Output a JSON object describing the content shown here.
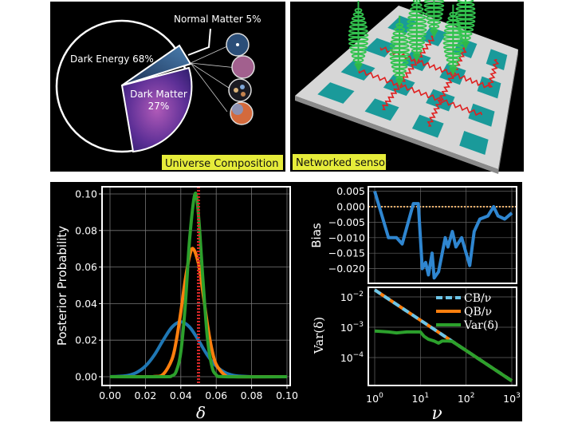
{
  "panels": {
    "universe": {
      "caption": "Universe Composition",
      "labels": {
        "dark_energy": "Dark Energy 68%",
        "normal_matter": "Normal Matter 5%",
        "dark_matter_line1": "Dark Matter",
        "dark_matter_line2": "27%"
      },
      "slices": [
        {
          "name": "Dark Energy",
          "percent": 68,
          "color": "#000000"
        },
        {
          "name": "Dark Matter",
          "percent": 27,
          "color": "#6a3a9a"
        },
        {
          "name": "Normal Matter",
          "percent": 5,
          "color": "#2d5a8a"
        }
      ]
    },
    "sensor": {
      "caption": "Networked sensor"
    },
    "caption_color": "#e6ec3a"
  },
  "chart_data": [
    {
      "type": "line",
      "xlabel": "δ",
      "ylabel": "Posterior Probability",
      "xlim": [
        0,
        0.1
      ],
      "ylim": [
        0,
        0.1
      ],
      "xticks": [
        "0.00",
        "0.02",
        "0.04",
        "0.06",
        "0.08",
        "0.10"
      ],
      "yticks": [
        "0.00",
        "0.02",
        "0.04",
        "0.06",
        "0.08",
        "0.10"
      ],
      "grid": true,
      "reference_line": {
        "x": 0.05,
        "style": "dotted",
        "color": "#d62728"
      },
      "series": [
        {
          "color": "#1f77b4",
          "x": [
            0,
            0.005,
            0.01,
            0.015,
            0.02,
            0.025,
            0.03,
            0.035,
            0.04,
            0.045,
            0.05,
            0.055,
            0.06,
            0.065,
            0.07,
            0.075,
            0.08,
            0.085,
            0.09,
            0.095,
            0.1
          ],
          "y": [
            0,
            0.0002,
            0.0007,
            0.0023,
            0.0058,
            0.0118,
            0.0199,
            0.0271,
            0.03,
            0.0271,
            0.0199,
            0.0118,
            0.0058,
            0.0023,
            0.0007,
            0.0002,
            0,
            0,
            0,
            0,
            0
          ]
        },
        {
          "color": "#ff7f0e",
          "x": [
            0,
            0.02,
            0.025,
            0.03,
            0.035,
            0.0375,
            0.04,
            0.0425,
            0.045,
            0.047,
            0.05,
            0.0525,
            0.055,
            0.0575,
            0.06,
            0.065,
            0.07,
            0.1
          ],
          "y": [
            0,
            0,
            0.0001,
            0.0013,
            0.0095,
            0.02,
            0.0354,
            0.0529,
            0.0662,
            0.07,
            0.0618,
            0.046,
            0.0288,
            0.0152,
            0.0067,
            0.0008,
            0,
            0
          ]
        },
        {
          "color": "#2ca02c",
          "x": [
            0,
            0.03,
            0.035,
            0.0375,
            0.04,
            0.0425,
            0.045,
            0.048,
            0.05,
            0.0525,
            0.055,
            0.0575,
            0.06,
            0.065,
            0.1
          ],
          "y": [
            0,
            0,
            0.0005,
            0.0032,
            0.0135,
            0.0389,
            0.0755,
            0.1,
            0.0882,
            0.0531,
            0.0216,
            0.006,
            0.0011,
            0,
            0
          ]
        }
      ]
    },
    {
      "type": "line",
      "ylabel": "Bias",
      "xscale": "log",
      "xlim": [
        1,
        1000
      ],
      "ylim": [
        -0.0235,
        0.006
      ],
      "yticks": [
        "0.005",
        "0.000",
        "−0.005",
        "−0.010",
        "−0.015",
        "−0.020"
      ],
      "grid": true,
      "reference_line": {
        "y": 0,
        "style": "dotted",
        "color": "#f5b26b"
      },
      "series": [
        {
          "color": "#2f86d0",
          "x": [
            1,
            2,
            3,
            4,
            7,
            9,
            11,
            13,
            15,
            18,
            20,
            25,
            30,
            35,
            40,
            50,
            60,
            80,
            100,
            120,
            150,
            200,
            300,
            400,
            500,
            700,
            1000
          ],
          "y": [
            0.005,
            -0.01,
            -0.01,
            -0.012,
            0.001,
            0.001,
            -0.02,
            -0.018,
            -0.022,
            -0.015,
            -0.023,
            -0.021,
            -0.015,
            -0.01,
            -0.013,
            -0.008,
            -0.013,
            -0.01,
            -0.015,
            -0.019,
            -0.008,
            -0.004,
            -0.003,
            0.0,
            -0.003,
            -0.004,
            -0.002
          ]
        }
      ]
    },
    {
      "type": "line",
      "xlabel": "ν",
      "ylabel": "Var(δ)",
      "xscale": "log",
      "yscale": "log",
      "xlim": [
        1,
        1000
      ],
      "xticks": [
        "10^0",
        "10^1",
        "10^2",
        "10^3"
      ],
      "yticks": [
        "10^-2",
        "10^-3",
        "10^-4"
      ],
      "grid": true,
      "legend": "top-right",
      "series": [
        {
          "name": "QB/ν",
          "color": "#ff7f0e",
          "style": "solid",
          "x": [
            1,
            1000
          ],
          "y": [
            0.017,
            1.7e-05
          ]
        },
        {
          "name": "CB/ν",
          "color": "#6cc5e8",
          "style": "dashed",
          "x": [
            1,
            1000
          ],
          "y": [
            0.017,
            1.7e-05
          ]
        },
        {
          "name": "Var(δ)",
          "color": "#2ca02c",
          "style": "solid",
          "x": [
            1,
            2,
            3,
            5,
            10,
            12,
            15,
            20,
            25,
            30,
            40,
            50,
            100,
            1000
          ],
          "y": [
            0.00075,
            0.0007,
            0.00065,
            0.0007,
            0.0007,
            0.0005,
            0.0004,
            0.00035,
            0.0003,
            0.00035,
            0.00035,
            0.00034,
            0.00017,
            1.7e-05
          ]
        }
      ]
    }
  ]
}
